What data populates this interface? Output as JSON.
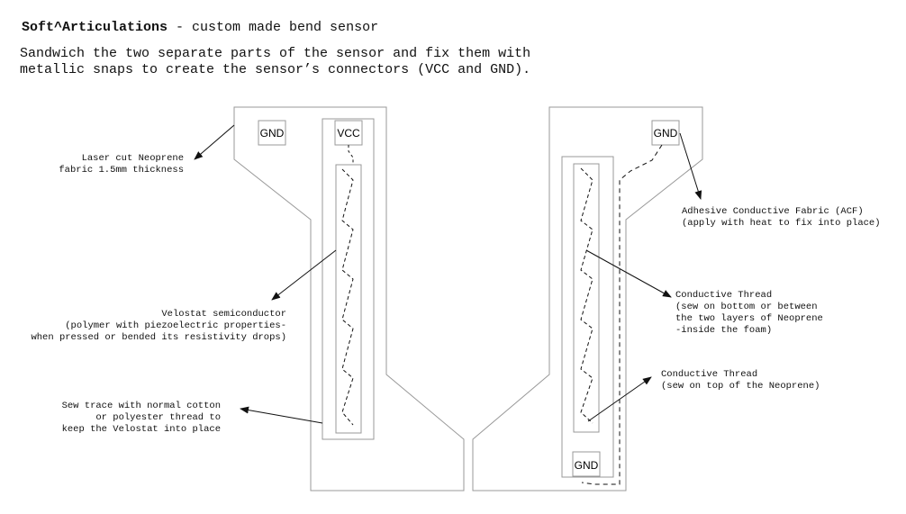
{
  "header": {
    "brand": "Soft^Articulations",
    "tagline": " - custom made bend sensor",
    "description": "Sandwich the two separate parts of the sensor and fix them with\nmetallic snaps to create the sensor’s connectors (VCC and GND)."
  },
  "connectors": {
    "left_gnd": "GND",
    "left_vcc": "VCC",
    "right_gnd_top": "GND",
    "right_gnd_bottom": "GND"
  },
  "annotations": {
    "neoprene": "Laser cut Neoprene\nfabric 1.5mm thickness",
    "velostat": "Velostat semiconductor\n(polymer with piezoelectric properties-\nwhen pressed or bended its resistivity drops)",
    "sew_trace": "Sew trace with normal cotton\nor polyester thread to\nkeep the Velostat into place",
    "acf": "Adhesive Conductive Fabric (ACF)\n(apply with heat to fix into place)",
    "thread_bottom": "Conductive Thread\n(sew on bottom or between\nthe two layers of Neoprene\n-inside the foam)",
    "thread_top": "Conductive Thread\n(sew on top of the Neoprene)"
  }
}
